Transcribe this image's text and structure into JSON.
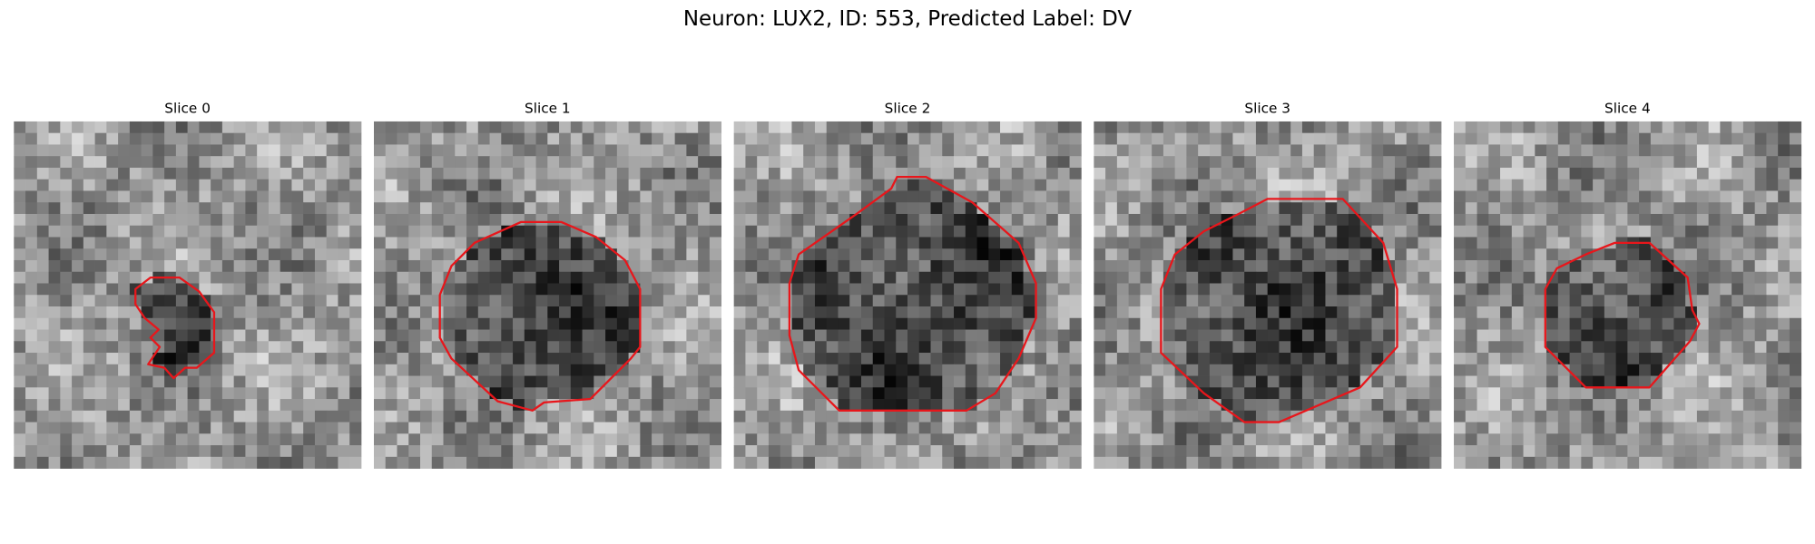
{
  "title": "Neuron: LUX2, ID: 553, Predicted Label: DV",
  "panels": [
    {
      "title": "Slice 0"
    },
    {
      "title": "Slice 1"
    },
    {
      "title": "Slice 2"
    },
    {
      "title": "Slice 3"
    },
    {
      "title": "Slice 4"
    }
  ]
}
